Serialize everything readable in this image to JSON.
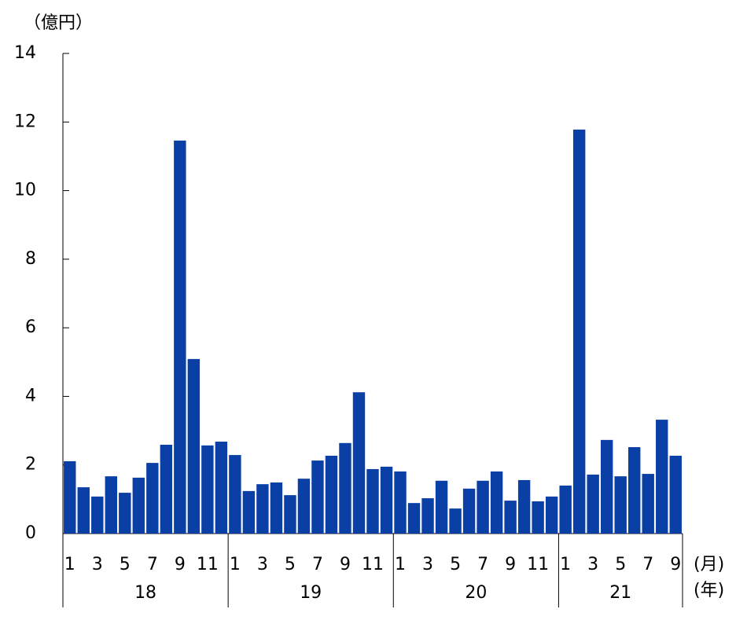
{
  "chart_data": {
    "type": "bar",
    "y_unit": "（億円）",
    "x_unit": "(月)",
    "group_unit": "(年)",
    "categories": [
      "1",
      null,
      "3",
      null,
      "5",
      null,
      "7",
      null,
      "9",
      null,
      "11",
      null,
      "1",
      null,
      "3",
      null,
      "5",
      null,
      "7",
      null,
      "9",
      null,
      "11",
      null,
      "1",
      null,
      "3",
      null,
      "5",
      null,
      "7",
      null,
      "9",
      null,
      "11",
      null,
      "1",
      null,
      "3",
      null,
      "5",
      null,
      "7",
      null,
      "9"
    ],
    "groups": [
      "18",
      "19",
      "20",
      "21"
    ],
    "values": [
      2.11,
      1.35,
      1.08,
      1.67,
      1.19,
      1.63,
      2.06,
      2.59,
      11.46,
      5.09,
      2.57,
      2.68,
      2.29,
      1.24,
      1.44,
      1.49,
      1.12,
      1.6,
      2.13,
      2.27,
      2.64,
      4.12,
      1.88,
      1.95,
      1.81,
      0.89,
      1.03,
      1.54,
      0.73,
      1.31,
      1.54,
      1.81,
      0.96,
      1.56,
      0.94,
      1.08,
      1.4,
      11.78,
      1.72,
      2.73,
      1.67,
      2.52,
      1.74,
      3.32,
      2.27
    ],
    "color": "#0a40a6",
    "ylim": [
      0,
      14
    ],
    "yticks": [
      0,
      2,
      4,
      6,
      8,
      10,
      12,
      14
    ],
    "grid": false
  }
}
